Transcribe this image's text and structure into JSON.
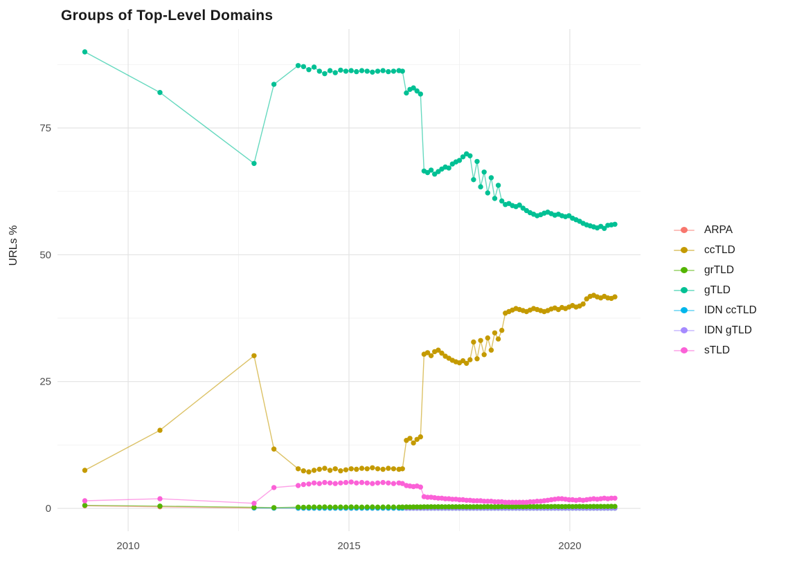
{
  "title": "Groups of Top-Level Domains",
  "axes": {
    "y_title": "URLs %",
    "x_tick_labels": [
      "2010",
      "2015",
      "2020"
    ],
    "y_tick_labels": [
      "0",
      "25",
      "50",
      "75"
    ]
  },
  "legend": {
    "items": [
      "ARPA",
      "ccTLD",
      "grTLD",
      "gTLD",
      "IDN ccTLD",
      "IDN gTLD",
      "sTLD"
    ]
  },
  "style": {
    "background": "#FFFFFF",
    "grid_major_color": "#E3E3E3",
    "grid_minor_color": "#F1F1F1",
    "tick_text_color": "#4D4D4D",
    "title_color": "#1A1A1A"
  },
  "chart_data": {
    "type": "line",
    "title": "Groups of Top-Level Domains",
    "xlabel": "",
    "ylabel": "URLs %",
    "xlim": [
      2008.4,
      2021.6
    ],
    "ylim": [
      -4.5,
      94.5
    ],
    "x_major_ticks": [
      2010,
      2015,
      2020
    ],
    "x_minor_gridlines": [
      2012.5,
      2017.5
    ],
    "y_major_ticks": [
      0,
      25,
      50,
      75
    ],
    "y_minor_gridlines": [
      12.5,
      37.5,
      62.5,
      87.5
    ],
    "grid": "major+minor",
    "legend_position": "right",
    "point_radius": 3.7,
    "line_width": 1.4,
    "line_opacity": 0.6,
    "x_sparse": [
      2009.02,
      2010.72,
      2012.85,
      2013.3
    ],
    "x_dense": [
      2013.85,
      2013.97,
      2014.09,
      2014.21,
      2014.33,
      2014.45,
      2014.57,
      2014.69,
      2014.81,
      2014.93,
      2015.05,
      2015.17,
      2015.29,
      2015.41,
      2015.53,
      2015.65,
      2015.77,
      2015.89,
      2016.01,
      2016.13,
      2016.21,
      2016.3,
      2016.38,
      2016.46,
      2016.54,
      2016.62,
      2016.7,
      2016.78,
      2016.86,
      2016.94,
      2017.02,
      2017.1,
      2017.18,
      2017.26,
      2017.34,
      2017.42,
      2017.5,
      2017.58,
      2017.66,
      2017.74,
      2017.82,
      2017.9,
      2017.98,
      2018.06,
      2018.14,
      2018.22,
      2018.3,
      2018.38,
      2018.46,
      2018.54,
      2018.62,
      2018.7,
      2018.78,
      2018.86,
      2018.94,
      2019.02,
      2019.1,
      2019.18,
      2019.26,
      2019.34,
      2019.42,
      2019.5,
      2019.58,
      2019.66,
      2019.74,
      2019.82,
      2019.9,
      2019.98,
      2020.06,
      2020.14,
      2020.22,
      2020.3,
      2020.38,
      2020.46,
      2020.54,
      2020.62,
      2020.7,
      2020.78,
      2020.86,
      2020.94,
      2021.02
    ],
    "series": [
      {
        "name": "ARPA",
        "color": "#F8766D",
        "y_sparse": [
          0.5,
          0.3,
          0.07,
          0.05
        ],
        "y_dense_fill": 0.03
      },
      {
        "name": "ccTLD",
        "color": "#C49A00",
        "y_sparse": [
          7.5,
          15.4,
          30.1,
          11.7
        ],
        "y_dense": [
          7.8,
          7.4,
          7.2,
          7.5,
          7.7,
          7.9,
          7.5,
          7.8,
          7.4,
          7.6,
          7.8,
          7.7,
          7.9,
          7.8,
          8,
          7.8,
          7.7,
          7.9,
          7.8,
          7.7,
          7.8,
          13.4,
          13.8,
          12.9,
          13.6,
          14.1,
          30.4,
          30.7,
          30.1,
          30.9,
          31.2,
          30.6,
          30,
          29.6,
          29.2,
          28.9,
          28.7,
          29.1,
          28.6,
          29.3,
          32.8,
          29.5,
          33.1,
          30.3,
          33.6,
          31.2,
          34.6,
          33.4,
          35.1,
          38.5,
          38.8,
          39.1,
          39.4,
          39.2,
          39,
          38.8,
          39.1,
          39.4,
          39.2,
          39,
          38.8,
          39,
          39.3,
          39.5,
          39.2,
          39.6,
          39.4,
          39.7,
          40,
          39.7,
          39.9,
          40.3,
          41.3,
          41.8,
          42,
          41.7,
          41.5,
          41.8,
          41.5,
          41.4,
          41.7
        ]
      },
      {
        "name": "grTLD",
        "color": "#53B400",
        "y_sparse": [
          0.6,
          0.45,
          0.2,
          0.15
        ],
        "y_dense": [
          0.25,
          0.22,
          0.24,
          0.26,
          0.25,
          0.27,
          0.25,
          0.24,
          0.26,
          0.25,
          0.27,
          0.26,
          0.25,
          0.26,
          0.27,
          0.25,
          0.26,
          0.27,
          0.26,
          0.25,
          0.26,
          0.27,
          0.26,
          0.27,
          0.28,
          0.27,
          0.3,
          0.3,
          0.31,
          0.3,
          0.32,
          0.31,
          0.3,
          0.31,
          0.32,
          0.31,
          0.32,
          0.33,
          0.32,
          0.31,
          0.32,
          0.33,
          0.32,
          0.33,
          0.34,
          0.33,
          0.32,
          0.33,
          0.34,
          0.35,
          0.34,
          0.33,
          0.34,
          0.35,
          0.34,
          0.35,
          0.36,
          0.35,
          0.34,
          0.35,
          0.36,
          0.35,
          0.36,
          0.37,
          0.36,
          0.35,
          0.36,
          0.37,
          0.36,
          0.37,
          0.38,
          0.37,
          0.36,
          0.37,
          0.38,
          0.37,
          0.38,
          0.37,
          0.38,
          0.39,
          0.38
        ]
      },
      {
        "name": "gTLD",
        "color": "#00C094",
        "y_sparse": [
          90,
          82,
          68,
          83.6
        ],
        "y_dense": [
          87.3,
          87.1,
          86.5,
          87,
          86.2,
          85.7,
          86.3,
          85.9,
          86.4,
          86.2,
          86.3,
          86.1,
          86.3,
          86.2,
          86,
          86.2,
          86.3,
          86.1,
          86.2,
          86.3,
          86.2,
          81.9,
          82.6,
          82.9,
          82.3,
          81.7,
          66.5,
          66.2,
          66.7,
          65.9,
          66.4,
          66.9,
          67.3,
          67.1,
          67.9,
          68.3,
          68.6,
          69.3,
          69.9,
          69.5,
          64.8,
          68.4,
          63.4,
          66.3,
          62.2,
          65.2,
          61.1,
          63.7,
          60.6,
          59.9,
          60.1,
          59.7,
          59.5,
          59.8,
          59.2,
          58.7,
          58.3,
          58,
          57.7,
          57.9,
          58.2,
          58.4,
          58.1,
          57.8,
          58,
          57.7,
          57.5,
          57.7,
          57.2,
          56.9,
          56.6,
          56.2,
          55.9,
          55.7,
          55.5,
          55.3,
          55.6,
          55.2,
          55.8,
          55.9,
          56
        ]
      },
      {
        "name": "IDN ccTLD",
        "color": "#00B6EB",
        "y_sparse": [
          null,
          null,
          0.08,
          0.05
        ],
        "y_dense_fill": 0.06
      },
      {
        "name": "IDN gTLD",
        "color": "#A58AFF",
        "y_sparse": [
          null,
          null,
          null,
          null
        ],
        "y_dense_fill": 0.08,
        "dense_from": 2016.3
      },
      {
        "name": "sTLD",
        "color": "#FB61D7",
        "y_sparse": [
          1.5,
          1.9,
          1.0,
          4.1
        ],
        "y_dense": [
          4.5,
          4.7,
          4.8,
          5,
          4.9,
          5.1,
          5,
          4.9,
          5,
          5.1,
          5.2,
          5,
          5.1,
          5,
          4.9,
          5,
          5.1,
          5,
          4.9,
          5,
          4.9,
          4.5,
          4.4,
          4.3,
          4.4,
          4.2,
          2.3,
          2.2,
          2.2,
          2.1,
          2,
          2,
          1.9,
          1.9,
          1.8,
          1.8,
          1.7,
          1.7,
          1.6,
          1.6,
          1.5,
          1.5,
          1.5,
          1.4,
          1.4,
          1.4,
          1.3,
          1.3,
          1.3,
          1.2,
          1.2,
          1.2,
          1.2,
          1.2,
          1.2,
          1.2,
          1.3,
          1.3,
          1.4,
          1.4,
          1.5,
          1.6,
          1.7,
          1.8,
          1.9,
          1.9,
          1.8,
          1.7,
          1.7,
          1.6,
          1.7,
          1.6,
          1.7,
          1.8,
          1.9,
          1.8,
          1.9,
          2,
          1.9,
          2,
          2
        ]
      }
    ],
    "draw_order": [
      "ARPA",
      "IDN ccTLD",
      "IDN gTLD",
      "grTLD",
      "ccTLD",
      "gTLD",
      "sTLD"
    ]
  }
}
